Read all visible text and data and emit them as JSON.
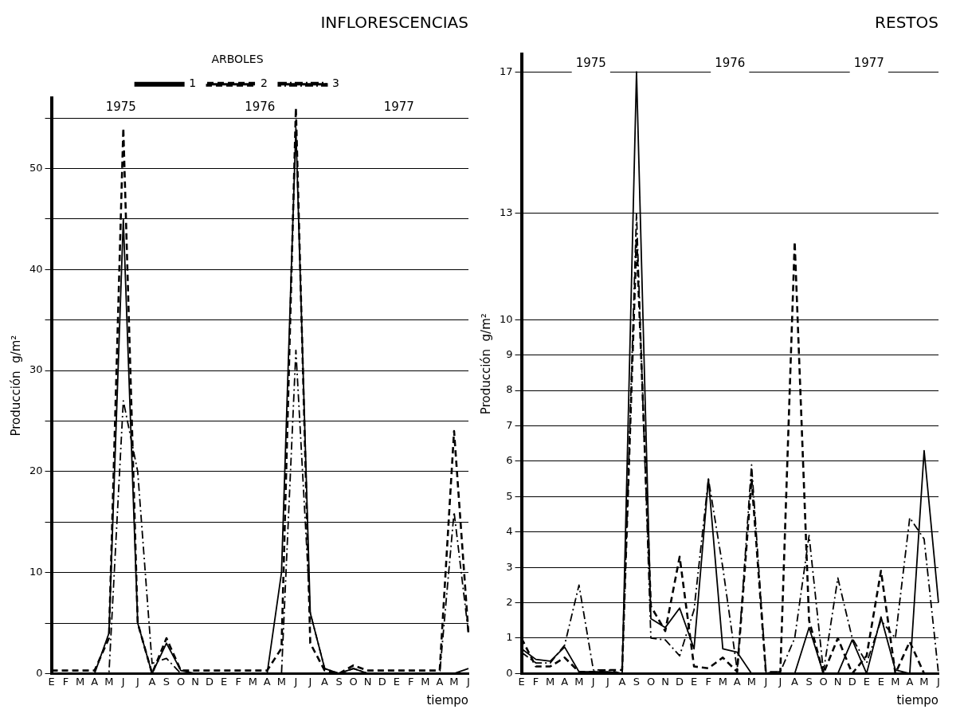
{
  "chart_data": [
    {
      "type": "line",
      "title": "INFLORESCENCIAS",
      "xlabel": "tiempo",
      "ylabel": "Producción  g/m²",
      "legend_title": "ARBOLES",
      "legend": "top",
      "grid": "y",
      "marker": "none",
      "annotations": [
        "1975",
        "1976",
        "1977"
      ],
      "categories": [
        "E",
        "F",
        "M",
        "A",
        "M",
        "J",
        "J",
        "A",
        "S",
        "O",
        "N",
        "D",
        "E",
        "F",
        "M",
        "A",
        "M",
        "J",
        "J",
        "A",
        "S",
        "O",
        "N",
        "D",
        "E",
        "F",
        "M",
        "A",
        "M",
        "J"
      ],
      "ylim": [
        0,
        57
      ],
      "yticks": [
        0,
        {
          "value": 5,
          "label": null
        },
        10,
        {
          "value": 15,
          "label": null
        },
        20,
        {
          "value": 25,
          "label": null
        },
        30,
        {
          "value": 35,
          "label": null
        },
        40,
        {
          "value": 45,
          "label": null
        },
        50,
        {
          "value": 55,
          "label": null
        }
      ],
      "series": [
        {
          "name": "1",
          "color": "#000000",
          "line_style": "solid",
          "values": [
            0,
            0,
            0,
            0,
            4,
            45,
            5,
            0,
            3,
            0.3,
            0,
            0,
            0,
            0,
            0,
            0,
            10,
            54,
            6,
            0.5,
            0,
            0.5,
            0,
            0,
            0,
            0,
            0,
            0,
            0,
            0.5
          ]
        },
        {
          "name": "2",
          "color": "#000000",
          "line_style": "dashed",
          "values": [
            0.3,
            0.3,
            0.3,
            0.3,
            3.5,
            54,
            5,
            0,
            3.5,
            0.3,
            0.3,
            0.3,
            0.3,
            0.3,
            0.3,
            0.3,
            2.5,
            56,
            3,
            0.3,
            0,
            0.8,
            0.3,
            0.3,
            0.3,
            0.3,
            0.3,
            0.3,
            24,
            4
          ]
        },
        {
          "name": "3",
          "color": "#000000",
          "line_style": "dashdot",
          "values": [
            0,
            0,
            0,
            0,
            0,
            27,
            20,
            1,
            1.5,
            0,
            0,
            0,
            0,
            0,
            0,
            0,
            0,
            32,
            6,
            0.5,
            0,
            0.5,
            0,
            0,
            0,
            0,
            0,
            0,
            16,
            4
          ]
        }
      ]
    },
    {
      "type": "line",
      "title": "RESTOS",
      "xlabel": "tiempo",
      "ylabel": "Producción  g/m²",
      "grid": "y",
      "marker": "none",
      "annotations": [
        "1975",
        "1976",
        "1977"
      ],
      "categories": [
        "E",
        "F",
        "M",
        "A",
        "M",
        "J",
        "J",
        "A",
        "S",
        "O",
        "N",
        "D",
        "E",
        "F",
        "M",
        "A",
        "M",
        "J",
        "J",
        "A",
        "S",
        "O",
        "N",
        "D",
        "E",
        "E",
        "M",
        "A",
        "M",
        "J"
      ],
      "ylim": [
        0,
        17.5
      ],
      "yticks": [
        0,
        1,
        2,
        3,
        4,
        5,
        6,
        7,
        8,
        9,
        10,
        13,
        17
      ],
      "series": [
        {
          "color": "#000000",
          "line_style": "solid",
          "values": [
            0.7,
            0.4,
            0.35,
            0.75,
            0.05,
            0.05,
            0.05,
            0,
            17,
            1.55,
            1.3,
            1.85,
            0.7,
            5.5,
            0.7,
            0.6,
            0,
            0,
            0,
            0,
            1.3,
            0,
            0,
            0.95,
            0,
            1.6,
            0.1,
            0,
            6.3,
            2
          ]
        },
        {
          "color": "#000000",
          "line_style": "dashed",
          "values": [
            1,
            0.2,
            0.2,
            0.45,
            0.05,
            0.05,
            0.1,
            0.1,
            12.3,
            1.9,
            1.2,
            3.3,
            0.2,
            0.15,
            0.45,
            0.05,
            5.5,
            0,
            0.05,
            12.2,
            1.5,
            0,
            1,
            0,
            0.5,
            2.9,
            0,
            0.9,
            0,
            0
          ]
        },
        {
          "color": "#000000",
          "line_style": "dashdot",
          "values": [
            0.6,
            0.3,
            0.3,
            0.8,
            2.5,
            0.1,
            0.1,
            0,
            13,
            1,
            0.95,
            0.5,
            1.8,
            5.5,
            3,
            0.1,
            5.9,
            0.05,
            0.05,
            1,
            3.9,
            0.05,
            2.7,
            1,
            0.3,
            1.5,
            1,
            4.4,
            3.8,
            0
          ]
        }
      ]
    }
  ]
}
